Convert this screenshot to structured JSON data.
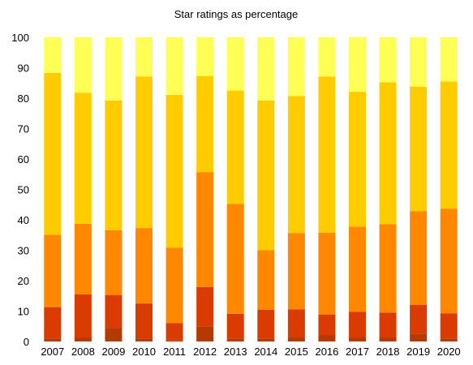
{
  "chart_data": {
    "type": "bar",
    "stacked": true,
    "title": "Star ratings as percentage",
    "xlabel": "",
    "ylabel": "",
    "ylim": [
      0,
      100
    ],
    "yticks": [
      0,
      10,
      20,
      30,
      40,
      50,
      60,
      70,
      80,
      90,
      100
    ],
    "grid": false,
    "legend": "none",
    "categories": [
      "2007",
      "2008",
      "2009",
      "2010",
      "2011",
      "2012",
      "2013",
      "2014",
      "2015",
      "2016",
      "2017",
      "2018",
      "2019",
      "2020"
    ],
    "series": [
      {
        "color": "#b33a00",
        "values": [
          1.0,
          1.2,
          4.5,
          1.0,
          0.3,
          5.0,
          1.0,
          1.0,
          1.2,
          2.0,
          1.2,
          1.2,
          2.5,
          1.0
        ]
      },
      {
        "color": "#d93b00",
        "values": [
          10.3,
          14.3,
          10.7,
          11.5,
          5.7,
          12.9,
          8.1,
          9.4,
          9.4,
          6.8,
          8.6,
          8.3,
          9.5,
          8.2
        ]
      },
      {
        "color": "#ff8800",
        "values": [
          23.8,
          23.2,
          21.4,
          24.8,
          24.8,
          37.8,
          36.1,
          19.6,
          25.0,
          27.0,
          28.0,
          29.1,
          30.8,
          34.4
        ]
      },
      {
        "color": "#ffcc00",
        "values": [
          53.2,
          43.1,
          42.6,
          49.8,
          50.3,
          31.6,
          37.3,
          49.2,
          45.1,
          51.3,
          44.3,
          46.6,
          41.0,
          41.9
        ]
      },
      {
        "color": "#ffff55",
        "values": [
          11.7,
          18.2,
          20.8,
          12.9,
          18.9,
          12.7,
          17.5,
          20.8,
          19.3,
          12.9,
          17.9,
          14.8,
          16.2,
          14.5
        ]
      }
    ]
  }
}
